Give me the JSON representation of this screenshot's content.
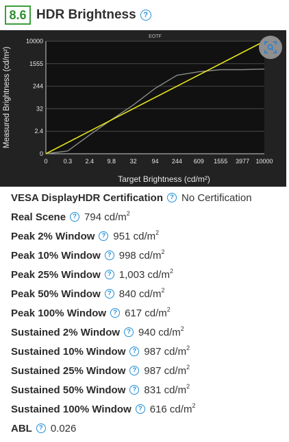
{
  "header": {
    "score": "8.6",
    "title": "HDR Brightness"
  },
  "chart_data": {
    "type": "line",
    "title": "EOTF",
    "xlabel": "Target Brightness (cd/m²)",
    "ylabel": "Measured Brightness (cd/m²)",
    "x_ticks": [
      "0",
      "0.3",
      "2.4",
      "9.8",
      "32",
      "94",
      "244",
      "609",
      "1555",
      "3977",
      "10000"
    ],
    "y_ticks": [
      "0",
      "2.4",
      "32",
      "244",
      "1555",
      "10000"
    ],
    "series": [
      {
        "name": "",
        "color": "#e6e61a",
        "x": [
          "0",
          "10000"
        ],
        "y": [
          "0",
          "10000"
        ]
      },
      {
        "name": "",
        "color": "#8a8a8a",
        "x": [
          "0",
          "0.3",
          "2.4",
          "9.8",
          "32",
          "94",
          "244",
          "609",
          "1555",
          "3977",
          "10000"
        ],
        "y": [
          "0",
          "0.3",
          "2",
          "9",
          "45",
          "200",
          "600",
          "800",
          "950",
          "950",
          "1000"
        ]
      }
    ]
  },
  "rows": [
    {
      "label": "VESA DisplayHDR Certification",
      "value": "No Certification",
      "unit": false
    },
    {
      "label": "Real Scene",
      "value": "794 cd/m",
      "unit": true
    },
    {
      "label": "Peak 2% Window",
      "value": "951 cd/m",
      "unit": true
    },
    {
      "label": "Peak 10% Window",
      "value": "998 cd/m",
      "unit": true
    },
    {
      "label": "Peak 25% Window",
      "value": "1,003 cd/m",
      "unit": true
    },
    {
      "label": "Peak 50% Window",
      "value": "840 cd/m",
      "unit": true
    },
    {
      "label": "Peak 100% Window",
      "value": "617 cd/m",
      "unit": true
    },
    {
      "label": "Sustained 2% Window",
      "value": "940 cd/m",
      "unit": true
    },
    {
      "label": "Sustained 10% Window",
      "value": "987 cd/m",
      "unit": true
    },
    {
      "label": "Sustained 25% Window",
      "value": "987 cd/m",
      "unit": true
    },
    {
      "label": "Sustained 50% Window",
      "value": "831 cd/m",
      "unit": true
    },
    {
      "label": "Sustained 100% Window",
      "value": "616 cd/m",
      "unit": true
    },
    {
      "label": "ABL",
      "value": "0.026",
      "unit": false
    }
  ]
}
